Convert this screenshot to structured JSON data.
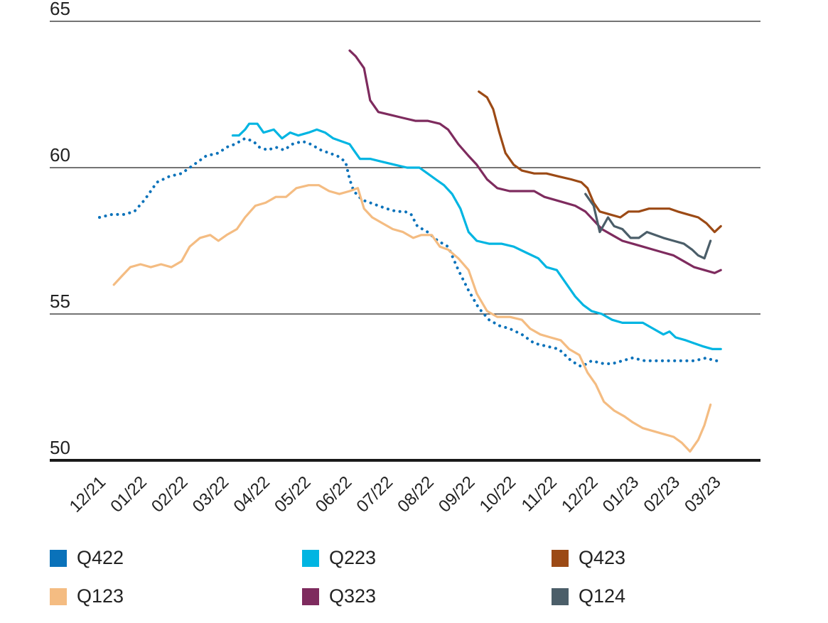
{
  "chart_data": {
    "type": "line",
    "ylim": [
      50,
      65
    ],
    "yticks": [
      "65",
      "60",
      "55",
      "50"
    ],
    "ytick_values": [
      65,
      60,
      55,
      50
    ],
    "xticks": [
      "12/21",
      "01/22",
      "02/22",
      "03/22",
      "04/22",
      "05/22",
      "06/22",
      "07/22",
      "08/22",
      "09/22",
      "10/22",
      "11/22",
      "12/22",
      "01/23",
      "02/23",
      "03/23"
    ],
    "grid": true,
    "legend_position": "bottom",
    "series": [
      {
        "name": "Q422",
        "color": "#0a72ba",
        "style": "dotted",
        "points": [
          [
            0.0,
            58.3
          ],
          [
            0.3,
            58.4
          ],
          [
            0.6,
            58.4
          ],
          [
            0.85,
            58.5
          ],
          [
            1.1,
            58.9
          ],
          [
            1.4,
            59.5
          ],
          [
            1.7,
            59.7
          ],
          [
            2.0,
            59.8
          ],
          [
            2.3,
            60.1
          ],
          [
            2.6,
            60.4
          ],
          [
            2.9,
            60.5
          ],
          [
            3.1,
            60.7
          ],
          [
            3.3,
            60.8
          ],
          [
            3.55,
            61.0
          ],
          [
            3.75,
            60.9
          ],
          [
            3.9,
            60.7
          ],
          [
            4.1,
            60.6
          ],
          [
            4.3,
            60.7
          ],
          [
            4.5,
            60.6
          ],
          [
            4.7,
            60.8
          ],
          [
            4.95,
            60.9
          ],
          [
            5.15,
            60.8
          ],
          [
            5.4,
            60.6
          ],
          [
            5.6,
            60.5
          ],
          [
            5.8,
            60.4
          ],
          [
            6.0,
            60.2
          ],
          [
            6.1,
            59.6
          ],
          [
            6.2,
            59.2
          ],
          [
            6.4,
            58.9
          ],
          [
            6.6,
            58.8
          ],
          [
            6.8,
            58.7
          ],
          [
            7.0,
            58.6
          ],
          [
            7.25,
            58.5
          ],
          [
            7.45,
            58.5
          ],
          [
            7.6,
            58.4
          ],
          [
            7.75,
            58.0
          ],
          [
            8.0,
            57.8
          ],
          [
            8.25,
            57.5
          ],
          [
            8.5,
            57.3
          ],
          [
            8.75,
            56.5
          ],
          [
            9.0,
            55.8
          ],
          [
            9.25,
            55.2
          ],
          [
            9.5,
            54.8
          ],
          [
            9.75,
            54.6
          ],
          [
            10.0,
            54.5
          ],
          [
            10.3,
            54.3
          ],
          [
            10.6,
            54.0
          ],
          [
            10.9,
            53.9
          ],
          [
            11.2,
            53.8
          ],
          [
            11.5,
            53.4
          ],
          [
            11.75,
            53.2
          ],
          [
            12.0,
            53.4
          ],
          [
            12.3,
            53.3
          ],
          [
            12.5,
            53.3
          ],
          [
            12.75,
            53.4
          ],
          [
            13.0,
            53.5
          ],
          [
            13.3,
            53.4
          ],
          [
            13.6,
            53.4
          ],
          [
            13.9,
            53.4
          ],
          [
            14.2,
            53.4
          ],
          [
            14.5,
            53.4
          ],
          [
            14.8,
            53.5
          ],
          [
            15.0,
            53.4
          ],
          [
            15.15,
            53.4
          ]
        ]
      },
      {
        "name": "Q223",
        "color": "#00b5e2",
        "style": "solid",
        "points": [
          [
            3.25,
            61.1
          ],
          [
            3.4,
            61.1
          ],
          [
            3.55,
            61.3
          ],
          [
            3.65,
            61.5
          ],
          [
            3.85,
            61.5
          ],
          [
            4.0,
            61.2
          ],
          [
            4.25,
            61.3
          ],
          [
            4.45,
            61.0
          ],
          [
            4.65,
            61.2
          ],
          [
            4.85,
            61.1
          ],
          [
            5.1,
            61.2
          ],
          [
            5.3,
            61.3
          ],
          [
            5.5,
            61.2
          ],
          [
            5.7,
            61.0
          ],
          [
            5.9,
            60.9
          ],
          [
            6.1,
            60.8
          ],
          [
            6.2,
            60.6
          ],
          [
            6.35,
            60.3
          ],
          [
            6.6,
            60.3
          ],
          [
            6.9,
            60.2
          ],
          [
            7.2,
            60.1
          ],
          [
            7.5,
            60.0
          ],
          [
            7.8,
            60.0
          ],
          [
            8.0,
            59.8
          ],
          [
            8.2,
            59.6
          ],
          [
            8.4,
            59.4
          ],
          [
            8.6,
            59.1
          ],
          [
            8.8,
            58.6
          ],
          [
            9.0,
            57.8
          ],
          [
            9.2,
            57.5
          ],
          [
            9.5,
            57.4
          ],
          [
            9.8,
            57.4
          ],
          [
            10.1,
            57.3
          ],
          [
            10.4,
            57.1
          ],
          [
            10.7,
            56.9
          ],
          [
            10.9,
            56.6
          ],
          [
            11.15,
            56.5
          ],
          [
            11.35,
            56.1
          ],
          [
            11.6,
            55.6
          ],
          [
            11.8,
            55.3
          ],
          [
            12.0,
            55.1
          ],
          [
            12.25,
            55.0
          ],
          [
            12.5,
            54.8
          ],
          [
            12.75,
            54.7
          ],
          [
            13.0,
            54.7
          ],
          [
            13.25,
            54.7
          ],
          [
            13.5,
            54.5
          ],
          [
            13.75,
            54.3
          ],
          [
            13.9,
            54.4
          ],
          [
            14.05,
            54.2
          ],
          [
            14.3,
            54.1
          ],
          [
            14.5,
            54.0
          ],
          [
            14.7,
            53.9
          ],
          [
            14.95,
            53.8
          ],
          [
            15.15,
            53.8
          ]
        ]
      },
      {
        "name": "Q423",
        "color": "#9c4a15",
        "style": "solid",
        "points": [
          [
            9.25,
            62.6
          ],
          [
            9.45,
            62.4
          ],
          [
            9.6,
            62.0
          ],
          [
            9.75,
            61.2
          ],
          [
            9.9,
            60.5
          ],
          [
            10.1,
            60.1
          ],
          [
            10.3,
            59.9
          ],
          [
            10.6,
            59.8
          ],
          [
            10.9,
            59.8
          ],
          [
            11.2,
            59.7
          ],
          [
            11.5,
            59.6
          ],
          [
            11.75,
            59.5
          ],
          [
            11.9,
            59.3
          ],
          [
            12.05,
            58.8
          ],
          [
            12.2,
            58.5
          ],
          [
            12.45,
            58.4
          ],
          [
            12.7,
            58.3
          ],
          [
            12.9,
            58.5
          ],
          [
            13.15,
            58.5
          ],
          [
            13.4,
            58.6
          ],
          [
            13.7,
            58.6
          ],
          [
            13.9,
            58.6
          ],
          [
            14.1,
            58.5
          ],
          [
            14.35,
            58.4
          ],
          [
            14.6,
            58.3
          ],
          [
            14.8,
            58.1
          ],
          [
            15.0,
            57.8
          ],
          [
            15.15,
            58.0
          ]
        ]
      },
      {
        "name": "Q123",
        "color": "#f4bc82",
        "style": "solid",
        "points": [
          [
            0.35,
            56.0
          ],
          [
            0.55,
            56.3
          ],
          [
            0.75,
            56.6
          ],
          [
            1.0,
            56.7
          ],
          [
            1.25,
            56.6
          ],
          [
            1.5,
            56.7
          ],
          [
            1.75,
            56.6
          ],
          [
            2.0,
            56.8
          ],
          [
            2.2,
            57.3
          ],
          [
            2.45,
            57.6
          ],
          [
            2.7,
            57.7
          ],
          [
            2.9,
            57.5
          ],
          [
            3.1,
            57.7
          ],
          [
            3.35,
            57.9
          ],
          [
            3.55,
            58.3
          ],
          [
            3.8,
            58.7
          ],
          [
            4.05,
            58.8
          ],
          [
            4.3,
            59.0
          ],
          [
            4.55,
            59.0
          ],
          [
            4.8,
            59.3
          ],
          [
            5.1,
            59.4
          ],
          [
            5.35,
            59.4
          ],
          [
            5.6,
            59.2
          ],
          [
            5.85,
            59.1
          ],
          [
            6.1,
            59.2
          ],
          [
            6.3,
            59.3
          ],
          [
            6.45,
            58.6
          ],
          [
            6.65,
            58.3
          ],
          [
            6.9,
            58.1
          ],
          [
            7.15,
            57.9
          ],
          [
            7.4,
            57.8
          ],
          [
            7.65,
            57.6
          ],
          [
            7.85,
            57.7
          ],
          [
            8.1,
            57.7
          ],
          [
            8.3,
            57.3
          ],
          [
            8.5,
            57.2
          ],
          [
            8.75,
            56.9
          ],
          [
            9.0,
            56.5
          ],
          [
            9.2,
            55.7
          ],
          [
            9.45,
            55.1
          ],
          [
            9.7,
            54.9
          ],
          [
            10.0,
            54.9
          ],
          [
            10.3,
            54.8
          ],
          [
            10.5,
            54.5
          ],
          [
            10.75,
            54.3
          ],
          [
            11.0,
            54.2
          ],
          [
            11.25,
            54.1
          ],
          [
            11.45,
            53.8
          ],
          [
            11.7,
            53.6
          ],
          [
            11.9,
            53.0
          ],
          [
            12.1,
            52.6
          ],
          [
            12.3,
            52.0
          ],
          [
            12.55,
            51.7
          ],
          [
            12.8,
            51.5
          ],
          [
            13.0,
            51.3
          ],
          [
            13.25,
            51.1
          ],
          [
            13.5,
            51.0
          ],
          [
            13.75,
            50.9
          ],
          [
            14.0,
            50.8
          ],
          [
            14.2,
            50.6
          ],
          [
            14.4,
            50.3
          ],
          [
            14.6,
            50.7
          ],
          [
            14.75,
            51.2
          ],
          [
            14.9,
            51.9
          ]
        ]
      },
      {
        "name": "Q323",
        "color": "#7e2b5e",
        "style": "solid",
        "points": [
          [
            6.1,
            64.0
          ],
          [
            6.25,
            63.8
          ],
          [
            6.45,
            63.4
          ],
          [
            6.6,
            62.3
          ],
          [
            6.8,
            61.9
          ],
          [
            7.1,
            61.8
          ],
          [
            7.4,
            61.7
          ],
          [
            7.7,
            61.6
          ],
          [
            8.0,
            61.6
          ],
          [
            8.3,
            61.5
          ],
          [
            8.5,
            61.3
          ],
          [
            8.75,
            60.8
          ],
          [
            9.0,
            60.4
          ],
          [
            9.2,
            60.1
          ],
          [
            9.45,
            59.6
          ],
          [
            9.7,
            59.3
          ],
          [
            10.0,
            59.2
          ],
          [
            10.3,
            59.2
          ],
          [
            10.6,
            59.2
          ],
          [
            10.85,
            59.0
          ],
          [
            11.1,
            58.9
          ],
          [
            11.35,
            58.8
          ],
          [
            11.6,
            58.7
          ],
          [
            11.85,
            58.5
          ],
          [
            12.05,
            58.2
          ],
          [
            12.25,
            57.9
          ],
          [
            12.5,
            57.7
          ],
          [
            12.75,
            57.5
          ],
          [
            13.0,
            57.4
          ],
          [
            13.25,
            57.3
          ],
          [
            13.5,
            57.2
          ],
          [
            13.75,
            57.1
          ],
          [
            14.0,
            57.0
          ],
          [
            14.25,
            56.8
          ],
          [
            14.5,
            56.6
          ],
          [
            14.75,
            56.5
          ],
          [
            15.0,
            56.4
          ],
          [
            15.15,
            56.5
          ]
        ]
      },
      {
        "name": "Q124",
        "color": "#4b5e69",
        "style": "solid",
        "points": [
          [
            11.85,
            59.1
          ],
          [
            12.05,
            58.7
          ],
          [
            12.2,
            57.8
          ],
          [
            12.4,
            58.3
          ],
          [
            12.55,
            58.0
          ],
          [
            12.75,
            57.9
          ],
          [
            12.95,
            57.6
          ],
          [
            13.15,
            57.6
          ],
          [
            13.35,
            57.8
          ],
          [
            13.55,
            57.7
          ],
          [
            13.75,
            57.6
          ],
          [
            14.0,
            57.5
          ],
          [
            14.25,
            57.4
          ],
          [
            14.45,
            57.2
          ],
          [
            14.6,
            57.0
          ],
          [
            14.75,
            56.9
          ],
          [
            14.9,
            57.5
          ]
        ]
      }
    ]
  },
  "legend": {
    "items": [
      {
        "label": "Q422",
        "color": "#0a72ba"
      },
      {
        "label": "Q223",
        "color": "#00b5e2"
      },
      {
        "label": "Q423",
        "color": "#9c4a15"
      },
      {
        "label": "Q123",
        "color": "#f4bc82"
      },
      {
        "label": "Q323",
        "color": "#7e2b5e"
      },
      {
        "label": "Q124",
        "color": "#4b5e69"
      }
    ]
  }
}
